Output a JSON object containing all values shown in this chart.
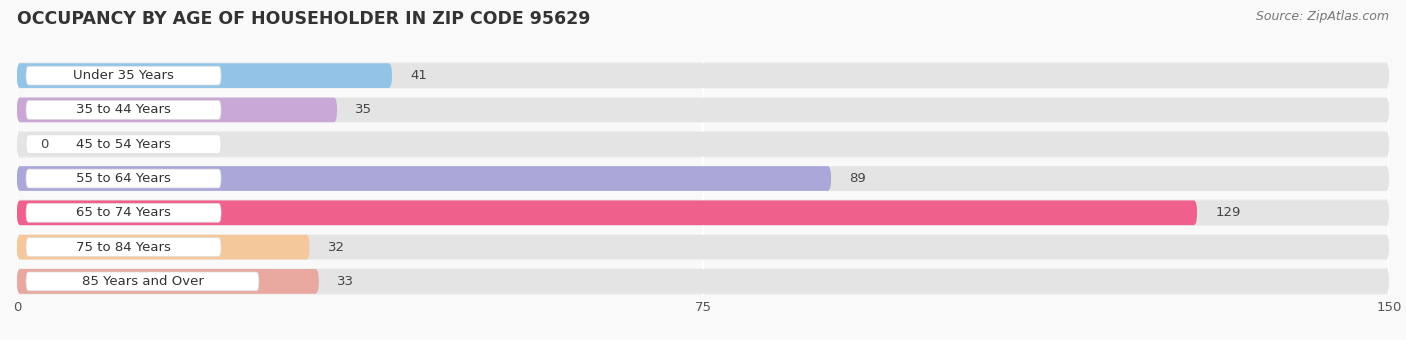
{
  "title": "OCCUPANCY BY AGE OF HOUSEHOLDER IN ZIP CODE 95629",
  "source": "Source: ZipAtlas.com",
  "categories": [
    "Under 35 Years",
    "35 to 44 Years",
    "45 to 54 Years",
    "55 to 64 Years",
    "65 to 74 Years",
    "75 to 84 Years",
    "85 Years and Over"
  ],
  "values": [
    41,
    35,
    0,
    89,
    129,
    32,
    33
  ],
  "bar_colors": [
    "#92C4E8",
    "#C9A8D6",
    "#7DD0C6",
    "#A9A8D8",
    "#F0608C",
    "#F5C89C",
    "#E8A8A0"
  ],
  "xlim": [
    0,
    150
  ],
  "xticks": [
    0,
    75,
    150
  ],
  "row_bg_colors": [
    "#f0f0f0",
    "#f8f8f8"
  ],
  "bar_bg_color": "#e4e4e4",
  "title_fontsize": 12.5,
  "label_fontsize": 9.5,
  "value_fontsize": 9.5,
  "source_fontsize": 9
}
